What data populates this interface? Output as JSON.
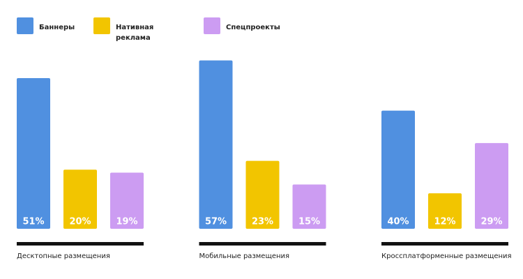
{
  "chart_data": {
    "type": "bar",
    "categories": [
      "Десктопные размещения",
      "Мобильные размещения",
      "Кроссплатформенные размещения"
    ],
    "series": [
      {
        "name": "Баннеры",
        "color": "#5090e0",
        "values": [
          51,
          57,
          40
        ],
        "value_labels": [
          "51%",
          "57%",
          "40%"
        ]
      },
      {
        "name": "Нативная реклама",
        "color": "#f2c500",
        "values": [
          20,
          23,
          12
        ],
        "value_labels": [
          "20%",
          "23%",
          "12%"
        ]
      },
      {
        "name": "Спецпроекты",
        "color": "#cc9cf2",
        "values": [
          19,
          15,
          29
        ],
        "value_labels": [
          "19%",
          "15%",
          "29%"
        ]
      }
    ]
  }
}
